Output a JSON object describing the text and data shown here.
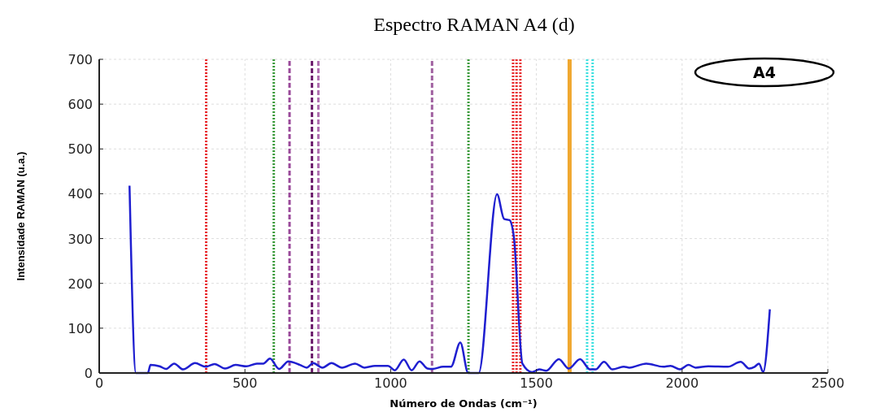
{
  "chart_data": {
    "type": "line",
    "title": "Espectro RAMAN A4 (d)",
    "xlabel": "Número de Ondas (cm⁻¹)",
    "ylabel": "Intensidade  RAMAN (u.a.)",
    "xlim": [
      0,
      2500
    ],
    "xticks": [
      0,
      500,
      1000,
      1500,
      2000,
      2500
    ],
    "ylim": [
      0,
      700
    ],
    "yticks": [
      0,
      100,
      200,
      300,
      400,
      500,
      600,
      700
    ],
    "grid": true,
    "marker": "none",
    "line_style": "solid",
    "annotations": [
      "A4"
    ],
    "series": [
      {
        "color": "#1f1fd0",
        "x": [
          104,
          126,
          145,
          167,
          176,
          207,
          230,
          257,
          288,
          329,
          365,
          396,
          432,
          468,
          505,
          541,
          563,
          586,
          617,
          649,
          689,
          712,
          734,
          766,
          797,
          833,
          878,
          910,
          946,
          991,
          1014,
          1045,
          1072,
          1099,
          1126,
          1144,
          1180,
          1207,
          1239,
          1266,
          1302,
          1365,
          1389,
          1408,
          1423,
          1452,
          1485,
          1510,
          1534,
          1577,
          1611,
          1650,
          1684,
          1703,
          1732,
          1761,
          1800,
          1819,
          1877,
          1935,
          1960,
          1993,
          2022,
          2046,
          2090,
          2157,
          2201,
          2230,
          2249,
          2264,
          2278,
          2301
        ],
        "values": [
          418,
          0,
          0,
          0,
          18,
          15,
          9,
          21,
          8,
          22,
          14,
          20,
          10,
          18,
          15,
          21,
          21,
          32,
          9,
          26,
          18,
          12,
          22,
          12,
          22,
          12,
          21,
          12,
          16,
          16,
          6,
          30,
          6,
          26,
          10,
          9,
          14,
          14,
          68,
          0,
          0,
          399,
          344,
          341,
          302,
          21,
          2,
          8,
          5,
          31,
          10,
          31,
          8,
          8,
          25,
          8,
          14,
          12,
          21,
          14,
          16,
          8,
          18,
          12,
          15,
          14,
          25,
          10,
          14,
          21,
          2,
          142
        ]
      }
    ],
    "ref_lines": [
      {
        "axis": "x",
        "value": 367,
        "color": "#e8262a",
        "line_style": "dotted"
      },
      {
        "axis": "x",
        "value": 599,
        "color": "#3a9a3a",
        "line_style": "dotted"
      },
      {
        "axis": "x",
        "value": 653,
        "color": "#9a4a9a",
        "line_style": "dashed"
      },
      {
        "axis": "x",
        "value": 730,
        "color": "#6a1a6a",
        "line_style": "dashed"
      },
      {
        "axis": "x",
        "value": 752,
        "color": "#b070b0",
        "line_style": "dashed"
      },
      {
        "axis": "x",
        "value": 1142,
        "color": "#a060a0",
        "line_style": "dashed"
      },
      {
        "axis": "x",
        "value": 1267,
        "color": "#3a9a3a",
        "line_style": "dotted"
      },
      {
        "axis": "x",
        "value": 1420,
        "color": "#e8262a",
        "line_style": "dotted"
      },
      {
        "axis": "x",
        "value": 1432,
        "color": "#e8262a",
        "line_style": "dotted"
      },
      {
        "axis": "x",
        "value": 1445,
        "color": "#e8262a",
        "line_style": "dotted"
      },
      {
        "axis": "x",
        "value": 1614,
        "color": "#f0a830",
        "line_style": "solid"
      },
      {
        "axis": "x",
        "value": 1674,
        "color": "#3de0e0",
        "line_style": "dotted"
      },
      {
        "axis": "x",
        "value": 1693,
        "color": "#3de0e0",
        "line_style": "dotted"
      }
    ]
  }
}
